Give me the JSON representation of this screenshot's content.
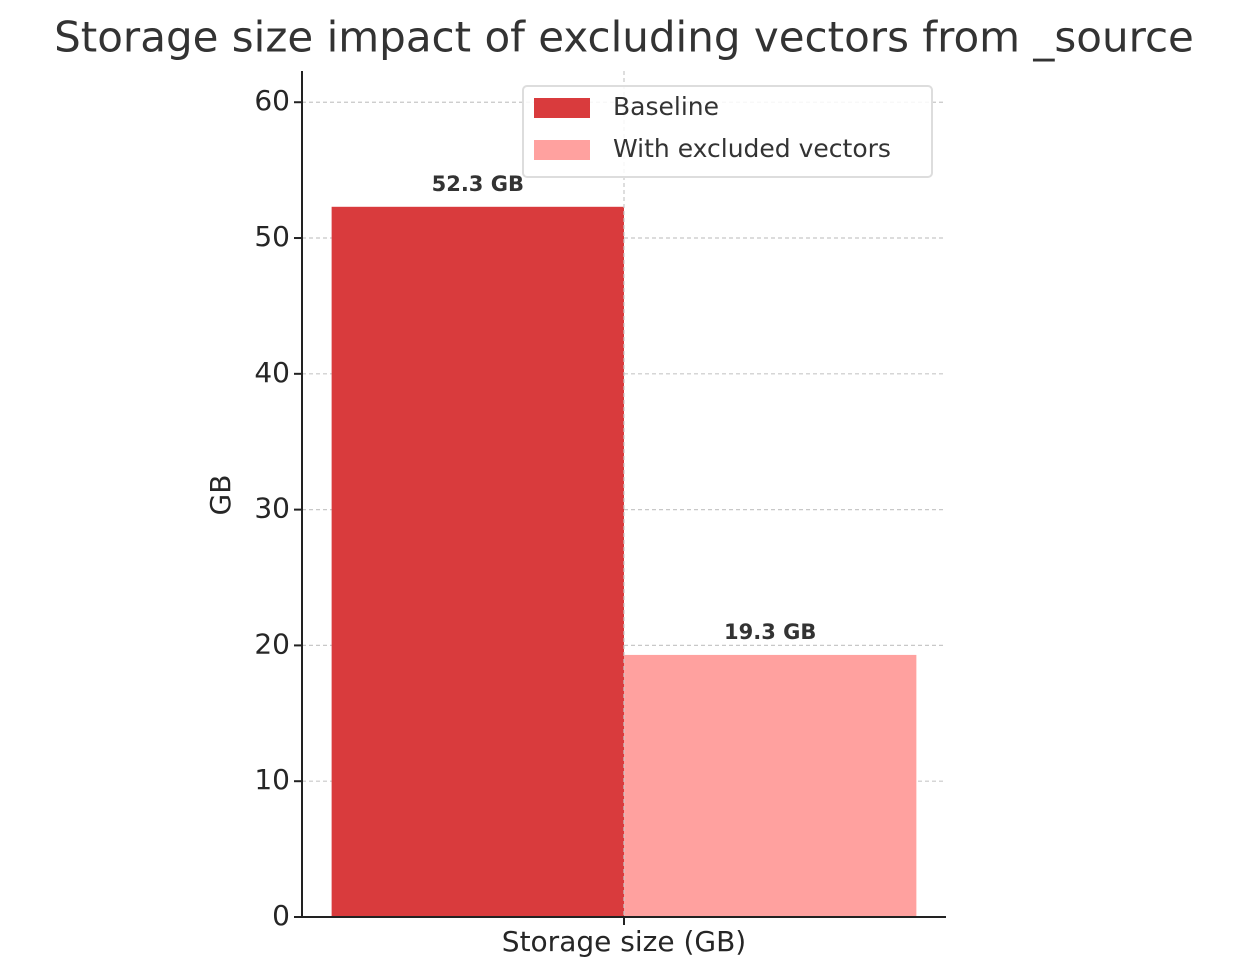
{
  "chart_data": {
    "type": "bar",
    "title": "Storage size impact of excluding vectors from _source",
    "categories": [
      "Storage size (GB)"
    ],
    "series": [
      {
        "name": "Baseline",
        "color": "#d93b3d",
        "values": [
          52.3
        ],
        "value_labels": [
          "52.3 GB"
        ]
      },
      {
        "name": "With excluded vectors",
        "color": "#ffa19f",
        "values": [
          19.3
        ],
        "value_labels": [
          "19.3 GB"
        ]
      }
    ],
    "ylabel": "GB",
    "ylim": [
      0,
      62.3
    ],
    "yticks": [
      0,
      10,
      20,
      30,
      40,
      50,
      60
    ],
    "grid": true,
    "legend": "upper right"
  }
}
